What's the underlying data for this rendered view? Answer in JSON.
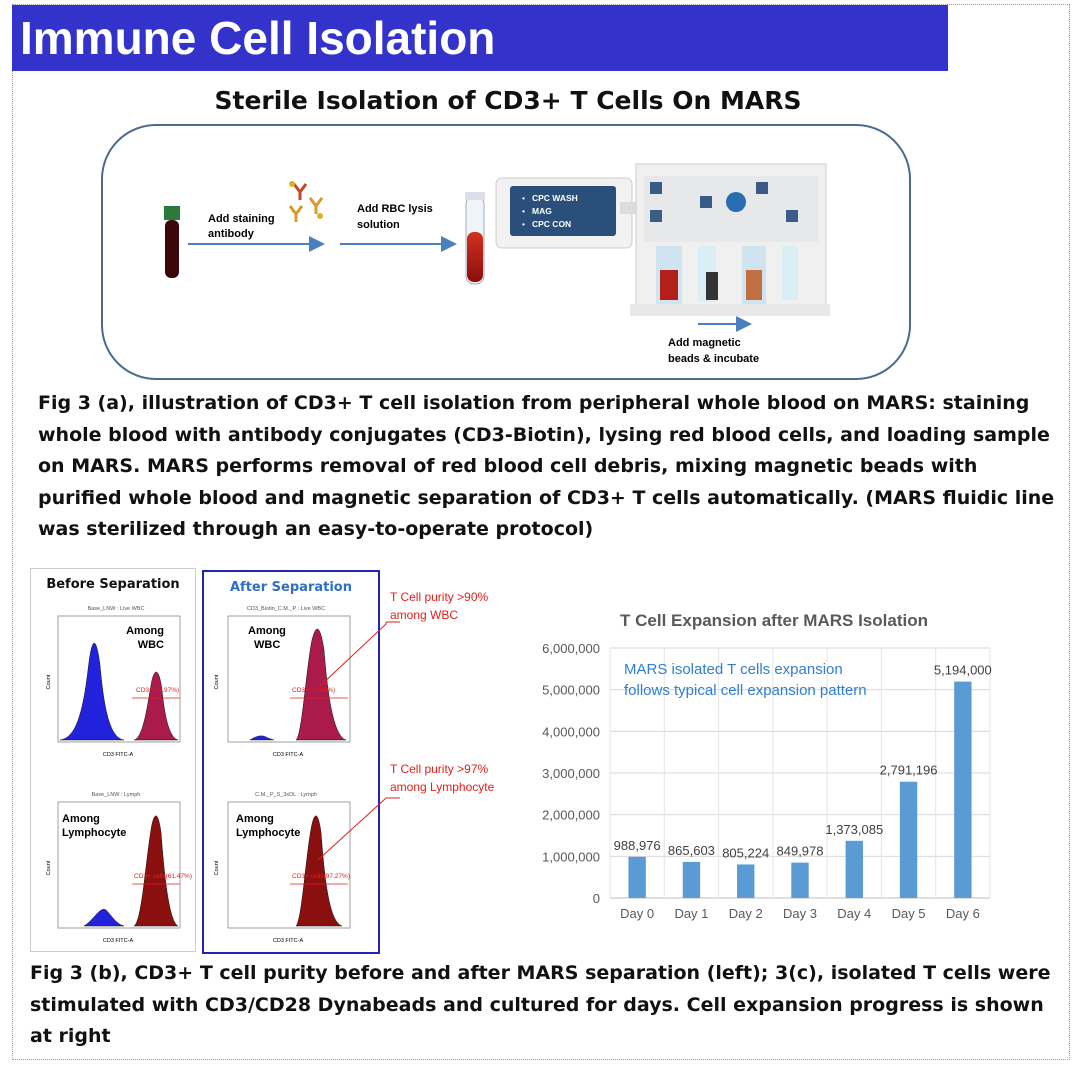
{
  "banner": {
    "title": "Immune Cell Isolation"
  },
  "subtitle": "Sterile Isolation of CD3+ T Cells On MARS",
  "workflow": {
    "step1_label_line1": "Add staining",
    "step1_label_line2": "antibody",
    "step2_label_line1": "Add RBC lysis",
    "step2_label_line2": "solution",
    "screen_items": [
      "CPC WASH",
      "MAG",
      "CPC CON"
    ],
    "step3_label_line1": "Add magnetic",
    "step3_label_line2": "beads & incubate"
  },
  "caption_a": "Fig 3 (a), illustration of CD3+ T cell isolation from peripheral whole blood on MARS: staining whole blood with antibody conjugates (CD3-Biotin), lysing red blood cells, and loading sample on MARS. MARS performs removal of red blood cell debris, mixing magnetic beads with purified whole blood and magnetic separation of CD3+ T cells automatically. (MARS fluidic line was sterilized through an easy-to-operate protocol)",
  "flow": {
    "before_title": "Before Separation",
    "after_title": "After Separation",
    "plots": [
      {
        "header": "Base_LNW : Live WBC",
        "among_line1": "Among",
        "among_line2": "WBC",
        "gate": "CD3+(39.97%)",
        "xlabel": "CD3 FITC-A",
        "ylabel": "Count"
      },
      {
        "header": "CD3_Biotin_C.M._P : Live WBC",
        "among_line1": "Among",
        "among_line2": "WBC",
        "gate": "CD3+(91.43%)",
        "xlabel": "CD3 FITC-A",
        "ylabel": "Count"
      },
      {
        "header": "Base_LNW : Lymph",
        "among_line1": "Among",
        "among_line2": "Lymphocyte",
        "gate": "CD3+ cells(61.47%)",
        "xlabel": "CD3 FITC-A",
        "ylabel": "Count"
      },
      {
        "header": "C.M._P_S_3xDL : Lymph",
        "among_line1": "Among",
        "among_line2": "Lymphocyte",
        "gate": "CD3+ cells(97.27%)",
        "xlabel": "CD3 FITC-A",
        "ylabel": "Count"
      }
    ],
    "note1_line1": "T Cell purity >90%",
    "note1_line2": "among WBC",
    "note2_line1": "T Cell purity >97%",
    "note2_line2": "among Lymphocyte"
  },
  "chart_data": {
    "type": "bar",
    "title": "T Cell Expansion after MARS Isolation",
    "categories": [
      "Day 0",
      "Day 1",
      "Day 2",
      "Day 3",
      "Day 4",
      "Day 5",
      "Day 6"
    ],
    "values": [
      988976,
      865603,
      805224,
      849978,
      1373085,
      2791196,
      5194000
    ],
    "data_labels": [
      "988,976",
      "865,603",
      "805,224",
      "849,978",
      "1,373,085",
      "2,791,196",
      "5,194,000"
    ],
    "ylim": [
      0,
      6000000
    ],
    "yticks": [
      "0",
      "1,000,000",
      "2,000,000",
      "3,000,000",
      "4,000,000",
      "5,000,000",
      "6,000,000"
    ],
    "annotation_line1": "MARS isolated T cells expansion",
    "annotation_line2": "follows typical cell expansion pattern",
    "bar_color": "#5b9bd5",
    "grid": true
  },
  "caption_b": "Fig 3 (b), CD3+ T cell purity before and after MARS separation (left);  3(c), isolated T cells were stimulated with CD3/CD28 Dynabeads and cultured for days. Cell expansion progress is shown at right"
}
